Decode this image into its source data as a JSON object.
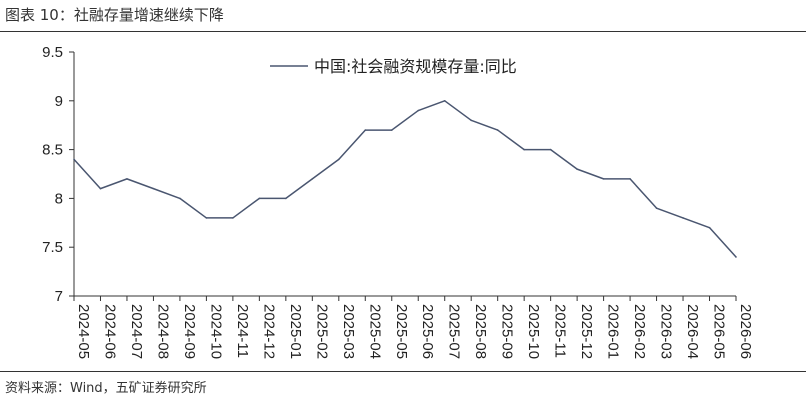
{
  "figure": {
    "title": "图表 10：社融存量增速继续下降",
    "source": "资料来源：Wind，五矿证券研究所"
  },
  "chart_data": {
    "type": "line",
    "title": "",
    "xlabel": "",
    "ylabel": "",
    "ylim": [
      7,
      9.5
    ],
    "yticks": [
      "7",
      "7.5",
      "8",
      "8.5",
      "9",
      "9.5"
    ],
    "grid": false,
    "legend_position": "top-center",
    "line_color": "#4a5670",
    "x": [
      "2024-05",
      "2024-06",
      "2024-07",
      "2024-08",
      "2024-09",
      "2024-10",
      "2024-11",
      "2024-12",
      "2025-01",
      "2025-02",
      "2025-03",
      "2025-04",
      "2025-05",
      "2025-06",
      "2025-07",
      "2025-08",
      "2025-09",
      "2025-10",
      "2025-11",
      "2025-12",
      "2026-01",
      "2026-02",
      "2026-03",
      "2026-04",
      "2026-05",
      "2026-06"
    ],
    "series": [
      {
        "name": "中国:社会融资规模存量:同比",
        "values": [
          8.4,
          8.1,
          8.2,
          8.1,
          8.0,
          7.8,
          7.8,
          8.0,
          8.0,
          8.2,
          8.4,
          8.7,
          8.7,
          8.9,
          9.0,
          8.8,
          8.7,
          8.5,
          8.5,
          8.3,
          8.2,
          8.2,
          7.9,
          7.8,
          7.7,
          7.4
        ]
      }
    ]
  }
}
